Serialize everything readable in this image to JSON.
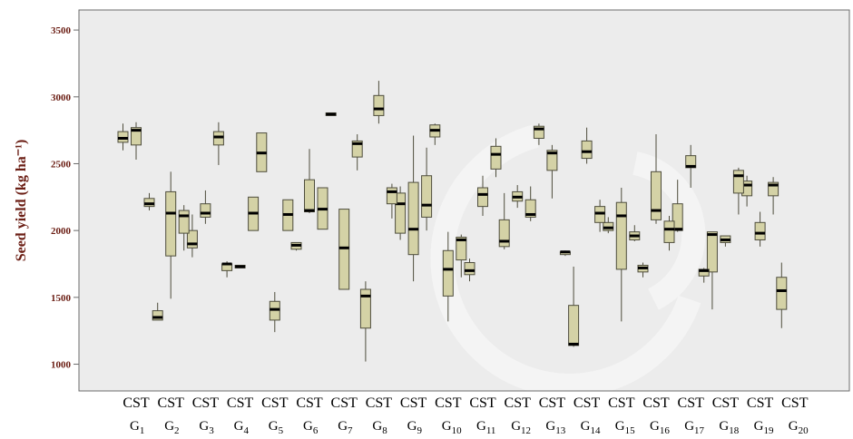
{
  "chart_data": {
    "type": "boxplot",
    "ylabel": "Seed yield (kg ha⁻¹)",
    "ylim": [
      800,
      3650
    ],
    "yticks": [
      1000,
      1500,
      2000,
      2500,
      3000,
      3500
    ],
    "grid": false,
    "tick_labels": [
      "CST",
      "CST",
      "CST",
      "CST",
      "CST",
      "CST",
      "CST",
      "CST",
      "CST",
      "CST",
      "CST",
      "CST",
      "CST",
      "CST",
      "CST",
      "CST",
      "CST",
      "CST",
      "CST",
      "CST"
    ],
    "groups": [
      "G1",
      "G2",
      "G3",
      "G4",
      "G5",
      "G6",
      "G7",
      "G8",
      "G9",
      "G10",
      "G11",
      "G12",
      "G13",
      "G14",
      "G15",
      "G16",
      "G17",
      "G18",
      "G19",
      "G20"
    ],
    "series": [
      {
        "name": "C",
        "boxes": [
          [
            2600,
            2660,
            2690,
            2740,
            2800
          ],
          [
            1330,
            1330,
            1350,
            1400,
            1460
          ],
          [
            1800,
            1870,
            1900,
            2000,
            2120
          ],
          [
            1650,
            1700,
            1750,
            1750,
            1770
          ],
          [
            2440,
            2440,
            2580,
            2730,
            2730
          ],
          [
            1850,
            1860,
            1890,
            1910,
            1910
          ],
          [
            2860,
            2860,
            2870,
            2880,
            2880
          ],
          [
            1020,
            1270,
            1510,
            1560,
            1620
          ],
          [
            1930,
            1980,
            2200,
            2280,
            2330
          ],
          [
            2640,
            2700,
            2750,
            2790,
            2800
          ],
          [
            1620,
            1670,
            1700,
            1760,
            1790
          ],
          [
            1860,
            1880,
            1920,
            2080,
            2280
          ],
          [
            2640,
            2690,
            2760,
            2780,
            2800
          ],
          [
            1130,
            1140,
            1150,
            1440,
            1730
          ],
          [
            1980,
            2000,
            2020,
            2060,
            2100
          ],
          [
            1650,
            1690,
            1720,
            1740,
            1760
          ],
          [
            1990,
            2000,
            2010,
            2200,
            2380
          ],
          [
            1410,
            1690,
            1970,
            1990,
            1990
          ],
          [
            2180,
            2260,
            2340,
            2370,
            2410
          ],
          [
            1270,
            1410,
            1550,
            1650,
            1760
          ]
        ]
      },
      {
        "name": "S",
        "boxes": [
          [
            2530,
            2640,
            2750,
            2770,
            2810
          ],
          [
            1490,
            1810,
            2130,
            2290,
            2440
          ],
          [
            2050,
            2100,
            2130,
            2200,
            2300
          ],
          [
            1720,
            1720,
            1730,
            1740,
            1740
          ],
          [
            1240,
            1330,
            1410,
            1470,
            1540
          ],
          [
            2130,
            2140,
            2150,
            2380,
            2610
          ],
          [
            1560,
            1560,
            1870,
            2160,
            2160
          ],
          [
            2800,
            2860,
            2910,
            3010,
            3120
          ],
          [
            1620,
            1820,
            2010,
            2360,
            2710
          ],
          [
            1320,
            1510,
            1710,
            1850,
            1990
          ],
          [
            2110,
            2180,
            2270,
            2320,
            2410
          ],
          [
            2170,
            2220,
            2250,
            2290,
            2340
          ],
          [
            2240,
            2450,
            2580,
            2600,
            2640
          ],
          [
            2500,
            2540,
            2590,
            2670,
            2770
          ],
          [
            1320,
            1710,
            2110,
            2210,
            2320
          ],
          [
            2050,
            2080,
            2150,
            2440,
            2720
          ],
          [
            2320,
            2470,
            2480,
            2560,
            2640
          ],
          [
            1880,
            1910,
            1930,
            1960,
            1960
          ],
          [
            1880,
            1930,
            1980,
            2060,
            2140
          ],
          null
        ]
      },
      {
        "name": "T",
        "boxes": [
          [
            2150,
            2180,
            2200,
            2240,
            2280
          ],
          [
            1850,
            1980,
            2110,
            2150,
            2190
          ],
          [
            2490,
            2640,
            2700,
            2740,
            2810
          ],
          [
            2000,
            2000,
            2130,
            2250,
            2250
          ],
          [
            2000,
            2000,
            2120,
            2230,
            2230
          ],
          [
            2010,
            2010,
            2160,
            2320,
            2320
          ],
          [
            2450,
            2550,
            2650,
            2670,
            2720
          ],
          [
            2090,
            2200,
            2290,
            2320,
            2350
          ],
          [
            2000,
            2100,
            2190,
            2410,
            2620
          ],
          [
            1650,
            1780,
            1930,
            1950,
            1970
          ],
          [
            2400,
            2460,
            2570,
            2630,
            2690
          ],
          [
            2070,
            2100,
            2120,
            2230,
            2330
          ],
          [
            1810,
            1820,
            1840,
            1840,
            1850
          ],
          [
            1990,
            2060,
            2130,
            2180,
            2230
          ],
          [
            1920,
            1930,
            1960,
            1990,
            2040
          ],
          [
            1850,
            1910,
            2010,
            2070,
            2110
          ],
          [
            1610,
            1660,
            1700,
            1710,
            1720
          ],
          [
            2120,
            2280,
            2410,
            2450,
            2470
          ],
          [
            2120,
            2260,
            2340,
            2360,
            2400
          ],
          null
        ]
      }
    ]
  },
  "colors": {
    "box_fill": "#d4d2a6",
    "box_stroke": "#4e4d3c",
    "median": "#000000",
    "plot_bg": "#ececec",
    "axis": "#6b6b6b",
    "text": "#6b1e14"
  }
}
